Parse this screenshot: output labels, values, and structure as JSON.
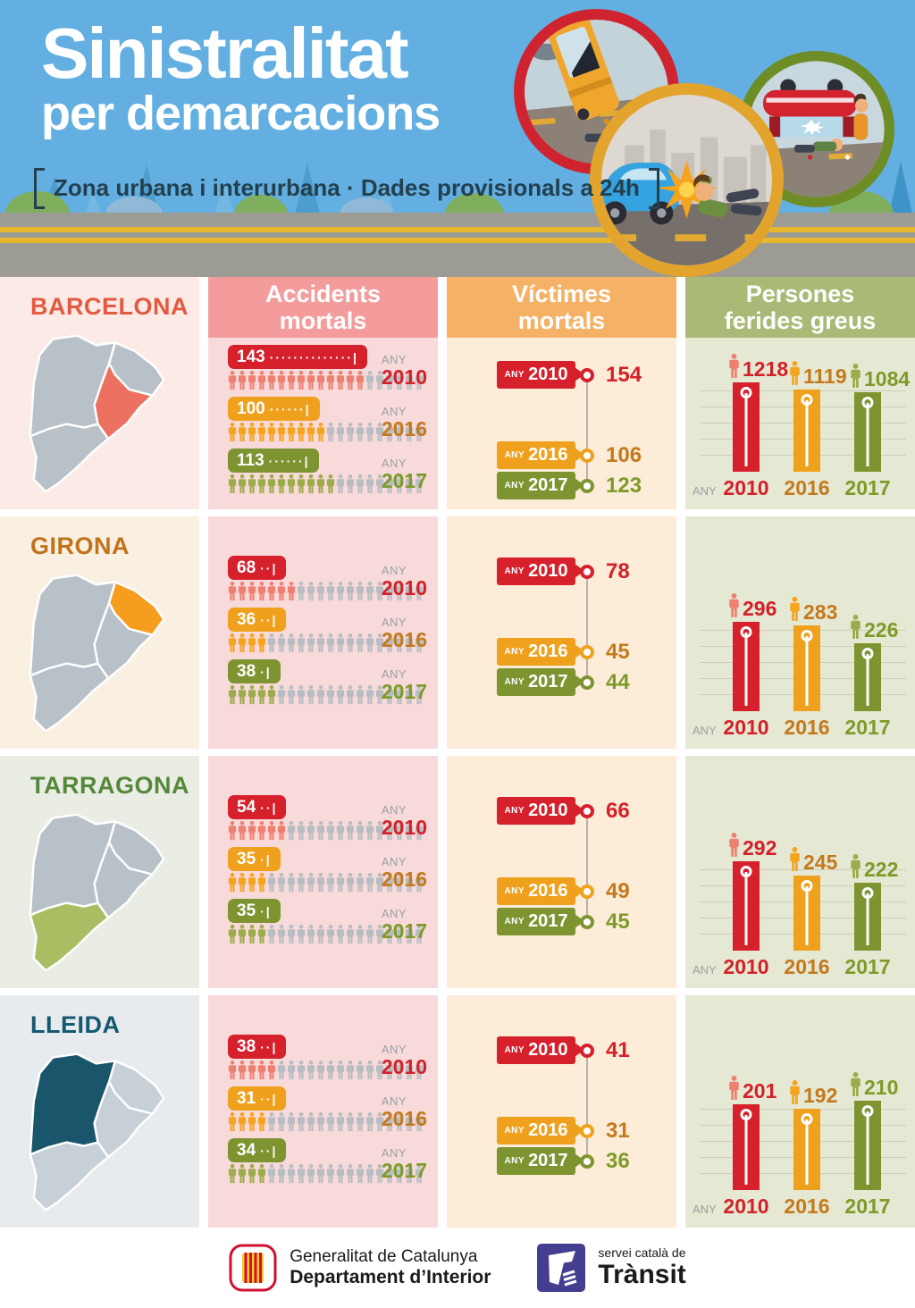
{
  "header": {
    "title_line1": "Sinistralitat",
    "title_line2": "per demarcacions",
    "subtitle": "Zona urbana i interurbana · Dades provisionals a 24h"
  },
  "labels": {
    "any": "ANY"
  },
  "columns": {
    "accidents": [
      "Accidents",
      "mortals"
    ],
    "victims": [
      "Víctimes",
      "mortals"
    ],
    "injured": [
      "Persones",
      "ferides greus"
    ]
  },
  "palette": {
    "sky": "#63afe1",
    "road": "#9c9c94",
    "road_line": "#e9b72e",
    "accidents_header_bg": "#f49c9c",
    "accidents_cell_bg": "#f9dada",
    "victims_header_bg": "#f5b165",
    "victims_cell_bg": "#fcecd8",
    "injured_header_bg": "#a9ba77",
    "injured_cell_bg": "#e5e8d3",
    "pictogram_gray": "#b7bdc2",
    "map_gray": "#b9c1c8",
    "hero_rings": [
      "#cf2430",
      "#e2a42c",
      "#6e8d26"
    ]
  },
  "years": [
    {
      "label": "2010",
      "badge": "#d6202c",
      "text": "#d42028",
      "icon": "#ee8072"
    },
    {
      "label": "2016",
      "badge": "#efa11e",
      "text": "#c4791c",
      "icon": "#f4a41f"
    },
    {
      "label": "2017",
      "badge": "#7d9430",
      "text": "#7e9a28",
      "icon": "#9cab4b"
    }
  ],
  "regions": [
    {
      "name": "BARCELONA",
      "name_color": "#e25a41",
      "map_fill": "#ec7160",
      "tint": "#fceae6",
      "highlight": "barcelona",
      "accidents": [
        {
          "year": "2010",
          "value": 143,
          "leader": "··············|",
          "icons_colored": 14,
          "icons_total": 20
        },
        {
          "year": "2016",
          "value": 100,
          "leader": "······|",
          "icons_colored": 10,
          "icons_total": 20
        },
        {
          "year": "2017",
          "value": 113,
          "leader": "······|",
          "icons_colored": 11,
          "icons_total": 20
        }
      ],
      "victims": [
        {
          "year": "2010",
          "value": 154
        },
        {
          "year": "2016",
          "value": 106
        },
        {
          "year": "2017",
          "value": 123
        }
      ],
      "injured": [
        {
          "year": "2010",
          "value": 1218
        },
        {
          "year": "2016",
          "value": 1119
        },
        {
          "year": "2017",
          "value": 1084
        }
      ]
    },
    {
      "name": "GIRONA",
      "name_color": "#c0731c",
      "map_fill": "#f59d1e",
      "tint": "#faf0e1",
      "highlight": "girona",
      "accidents": [
        {
          "year": "2010",
          "value": 68,
          "leader": "··|",
          "icons_colored": 7,
          "icons_total": 20
        },
        {
          "year": "2016",
          "value": 36,
          "leader": "··|",
          "icons_colored": 4,
          "icons_total": 20
        },
        {
          "year": "2017",
          "value": 38,
          "leader": "·|",
          "icons_colored": 5,
          "icons_total": 20
        }
      ],
      "victims": [
        {
          "year": "2010",
          "value": 78
        },
        {
          "year": "2016",
          "value": 45
        },
        {
          "year": "2017",
          "value": 44
        }
      ],
      "injured": [
        {
          "year": "2010",
          "value": 296
        },
        {
          "year": "2016",
          "value": 283
        },
        {
          "year": "2017",
          "value": 226
        }
      ]
    },
    {
      "name": "TARRAGONA",
      "name_color": "#55883b",
      "map_fill": "#a9bd62",
      "tint": "#eaede3",
      "highlight": "tarragona",
      "accidents": [
        {
          "year": "2010",
          "value": 54,
          "leader": "··|",
          "icons_colored": 6,
          "icons_total": 20
        },
        {
          "year": "2016",
          "value": 35,
          "leader": "·|",
          "icons_colored": 4,
          "icons_total": 20
        },
        {
          "year": "2017",
          "value": 35,
          "leader": "·|",
          "icons_colored": 4,
          "icons_total": 20
        }
      ],
      "victims": [
        {
          "year": "2010",
          "value": 66
        },
        {
          "year": "2016",
          "value": 49
        },
        {
          "year": "2017",
          "value": 45
        }
      ],
      "injured": [
        {
          "year": "2010",
          "value": 292
        },
        {
          "year": "2016",
          "value": 245
        },
        {
          "year": "2017",
          "value": 222
        }
      ]
    },
    {
      "name": "LLEIDA",
      "name_color": "#155971",
      "map_fill": "#19566b",
      "tint": "#e7ebee",
      "highlight": "lleida",
      "accidents": [
        {
          "year": "2010",
          "value": 38,
          "leader": "··|",
          "icons_colored": 5,
          "icons_total": 20
        },
        {
          "year": "2016",
          "value": 31,
          "leader": "··|",
          "icons_colored": 4,
          "icons_total": 20
        },
        {
          "year": "2017",
          "value": 34,
          "leader": "··|",
          "icons_colored": 4,
          "icons_total": 20
        }
      ],
      "victims": [
        {
          "year": "2010",
          "value": 41
        },
        {
          "year": "2016",
          "value": 31
        },
        {
          "year": "2017",
          "value": 36
        }
      ],
      "injured": [
        {
          "year": "2010",
          "value": 201
        },
        {
          "year": "2016",
          "value": 192
        },
        {
          "year": "2017",
          "value": 210
        }
      ]
    }
  ],
  "footer": {
    "gencat_line1": "Generalitat de Catalunya",
    "gencat_line2": "Departament d’Interior",
    "transit_line1": "servei català de",
    "transit_line2": "Trànsit"
  },
  "chart_data": [
    {
      "type": "bar",
      "title": "Accidents mortals",
      "categories": [
        "2010",
        "2016",
        "2017"
      ],
      "series": [
        {
          "name": "Barcelona",
          "values": [
            143,
            100,
            113
          ]
        },
        {
          "name": "Girona",
          "values": [
            68,
            36,
            38
          ]
        },
        {
          "name": "Tarragona",
          "values": [
            54,
            35,
            35
          ]
        },
        {
          "name": "Lleida",
          "values": [
            38,
            31,
            34
          ]
        }
      ],
      "note": "rendered as pictogram rows, 20 person icons per row, 1 icon = 10 accidents"
    },
    {
      "type": "line",
      "title": "Víctimes mortals",
      "categories": [
        "2010",
        "2016",
        "2017"
      ],
      "series": [
        {
          "name": "Barcelona",
          "values": [
            154,
            106,
            123
          ]
        },
        {
          "name": "Girona",
          "values": [
            78,
            45,
            44
          ]
        },
        {
          "name": "Tarragona",
          "values": [
            66,
            49,
            45
          ]
        },
        {
          "name": "Lleida",
          "values": [
            41,
            31,
            36
          ]
        }
      ],
      "note": "rendered as vertical timeline with year badges and ring markers"
    },
    {
      "type": "bar",
      "title": "Persones ferides greus",
      "categories": [
        "2010",
        "2016",
        "2017"
      ],
      "series": [
        {
          "name": "Barcelona",
          "values": [
            1218,
            1119,
            1084
          ]
        },
        {
          "name": "Girona",
          "values": [
            296,
            283,
            226
          ]
        },
        {
          "name": "Tarragona",
          "values": [
            292,
            245,
            222
          ]
        },
        {
          "name": "Lleida",
          "values": [
            201,
            192,
            210
          ]
        }
      ],
      "note": "column chart per region, bars colored by year, scaled to row maximum"
    }
  ]
}
